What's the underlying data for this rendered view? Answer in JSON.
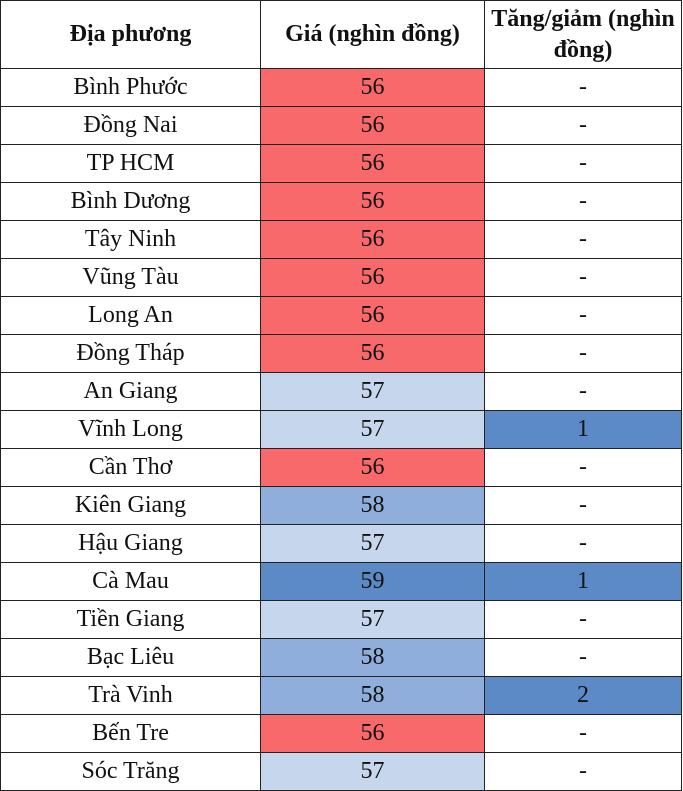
{
  "headers": [
    "Địa phương",
    "Giá (nghìn đồng)",
    "Tăng/giảm (nghìn đồng)"
  ],
  "colors": {
    "56": "#F8696B",
    "57": "#C6D6ED",
    "58": "#8FAEDC",
    "59": "#5B8AC6",
    "change": "#5B8AC6"
  },
  "rows": [
    {
      "place": "Bình Phước",
      "price": "56",
      "change": "-"
    },
    {
      "place": "Đồng Nai",
      "price": "56",
      "change": "-"
    },
    {
      "place": "TP HCM",
      "price": "56",
      "change": "-"
    },
    {
      "place": "Bình Dương",
      "price": "56",
      "change": "-"
    },
    {
      "place": "Tây Ninh",
      "price": "56",
      "change": "-"
    },
    {
      "place": "Vũng Tàu",
      "price": "56",
      "change": "-"
    },
    {
      "place": "Long An",
      "price": "56",
      "change": "-"
    },
    {
      "place": "Đồng Tháp",
      "price": "56",
      "change": "-"
    },
    {
      "place": "An Giang",
      "price": "57",
      "change": "-"
    },
    {
      "place": "Vĩnh Long",
      "price": "57",
      "change": "1"
    },
    {
      "place": "Cần Thơ",
      "price": "56",
      "change": "-"
    },
    {
      "place": "Kiên Giang",
      "price": "58",
      "change": "-"
    },
    {
      "place": "Hậu Giang",
      "price": "57",
      "change": "-"
    },
    {
      "place": "Cà Mau",
      "price": "59",
      "change": "1"
    },
    {
      "place": "Tiền Giang",
      "price": "57",
      "change": "-"
    },
    {
      "place": "Bạc Liêu",
      "price": "58",
      "change": "-"
    },
    {
      "place": "Trà Vinh",
      "price": "58",
      "change": "2"
    },
    {
      "place": "Bến Tre",
      "price": "56",
      "change": "-"
    },
    {
      "place": "Sóc Trăng",
      "price": "57",
      "change": "-"
    }
  ]
}
